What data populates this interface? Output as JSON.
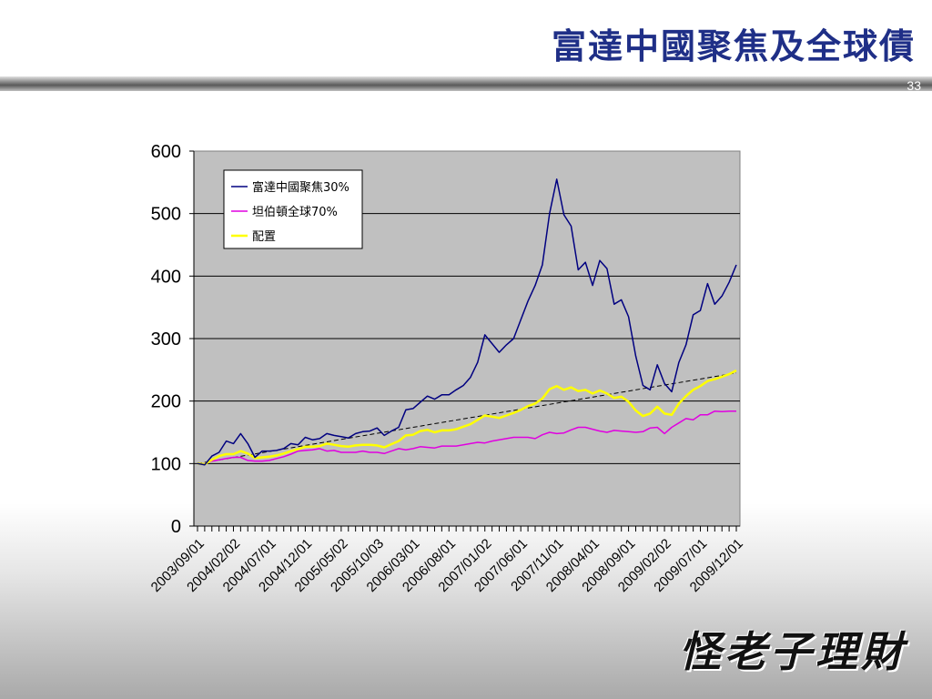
{
  "slide": {
    "title": "富達中國聚焦及全球債",
    "page_number": "33",
    "logo_text": "怪老子理財"
  },
  "chart_data": {
    "type": "line",
    "ylim": [
      0,
      600
    ],
    "yticks": [
      0,
      100,
      200,
      300,
      400,
      500,
      600
    ],
    "xtick_labels": [
      "2003/09/01",
      "2004/02/02",
      "2004/07/01",
      "2004/12/01",
      "2005/05/02",
      "2005/10/03",
      "2006/03/01",
      "2006/08/01",
      "2007/01/02",
      "2007/06/01",
      "2007/11/01",
      "2008/04/01",
      "2008/09/01",
      "2009/02/02",
      "2009/07/01",
      "2009/12/01"
    ],
    "n_points": 76,
    "grid": "horizontal",
    "legend": "top-left",
    "series": [
      {
        "name": "富達中國聚焦30%",
        "color": "#000080",
        "values": [
          100,
          98,
          112,
          118,
          136,
          132,
          148,
          132,
          110,
          120,
          120,
          121,
          124,
          132,
          130,
          142,
          138,
          140,
          148,
          145,
          143,
          141,
          148,
          151,
          152,
          157,
          145,
          152,
          158,
          186,
          188,
          198,
          208,
          203,
          210,
          210,
          218,
          225,
          238,
          262,
          306,
          292,
          278,
          290,
          300,
          330,
          360,
          385,
          418,
          500,
          555,
          498,
          480,
          410,
          422,
          385,
          425,
          412,
          355,
          362,
          335,
          272,
          225,
          218,
          258,
          228,
          215,
          262,
          290,
          338,
          345,
          388,
          355,
          368,
          390,
          418
        ]
      },
      {
        "name": "坦伯頓全球70%",
        "color": "#e000e0",
        "values": [
          100,
          100,
          104,
          106,
          108,
          110,
          110,
          105,
          104,
          104,
          105,
          108,
          111,
          115,
          120,
          121,
          122,
          124,
          120,
          121,
          118,
          118,
          118,
          120,
          118,
          118,
          116,
          120,
          124,
          122,
          124,
          127,
          126,
          125,
          128,
          128,
          128,
          130,
          132,
          134,
          133,
          136,
          138,
          140,
          142,
          142,
          142,
          140,
          146,
          150,
          148,
          149,
          154,
          158,
          158,
          155,
          152,
          150,
          153,
          152,
          151,
          150,
          151,
          157,
          158,
          148,
          158,
          165,
          172,
          170,
          178,
          178,
          184,
          183,
          184,
          184
        ]
      },
      {
        "name": "配置",
        "color": "#ffff00",
        "values": [
          100,
          99,
          106,
          112,
          115,
          115,
          120,
          116,
          109,
          110,
          111,
          113,
          116,
          120,
          123,
          127,
          127,
          128,
          132,
          130,
          128,
          127,
          129,
          130,
          130,
          129,
          126,
          131,
          136,
          145,
          146,
          152,
          154,
          150,
          153,
          153,
          155,
          159,
          163,
          170,
          177,
          175,
          173,
          177,
          181,
          186,
          192,
          196,
          204,
          219,
          224,
          218,
          222,
          216,
          218,
          212,
          217,
          212,
          205,
          207,
          199,
          185,
          176,
          180,
          191,
          180,
          178,
          196,
          208,
          218,
          224,
          232,
          235,
          239,
          243,
          249
        ]
      }
    ],
    "trendline": {
      "style": "dashed",
      "color": "#000000",
      "from": 100,
      "to": 245
    }
  }
}
